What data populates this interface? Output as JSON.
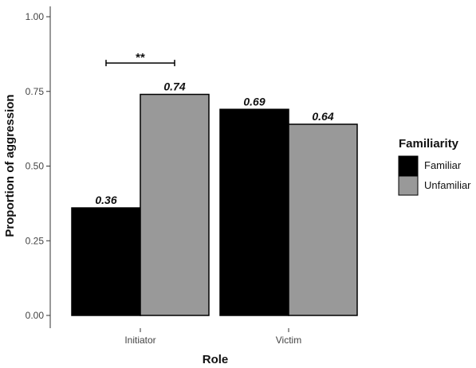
{
  "chart_data": {
    "type": "bar",
    "categories": [
      "Initiator",
      "Victim"
    ],
    "series": [
      {
        "name": "Familiar",
        "values": [
          0.36,
          0.69
        ],
        "color": "#000000"
      },
      {
        "name": "Unfamiliar",
        "values": [
          0.74,
          0.64
        ],
        "color": "#999999"
      }
    ],
    "data_labels": [
      [
        "0.36",
        "0.69"
      ],
      [
        "0.74",
        "0.64"
      ]
    ],
    "xlabel": "Role",
    "ylabel": "Proportion of aggression",
    "ylim": [
      0,
      1
    ],
    "yticks": [
      0,
      0.25,
      0.5,
      0.75,
      1
    ],
    "ytick_labels": [
      "0.00",
      "0.25",
      "0.50",
      "0.75",
      "1.00"
    ],
    "grid": false,
    "legend": {
      "title": "Familiarity",
      "position": "right"
    },
    "annotations": [
      {
        "text": "**",
        "category": "Initiator",
        "y": 0.845
      }
    ]
  }
}
